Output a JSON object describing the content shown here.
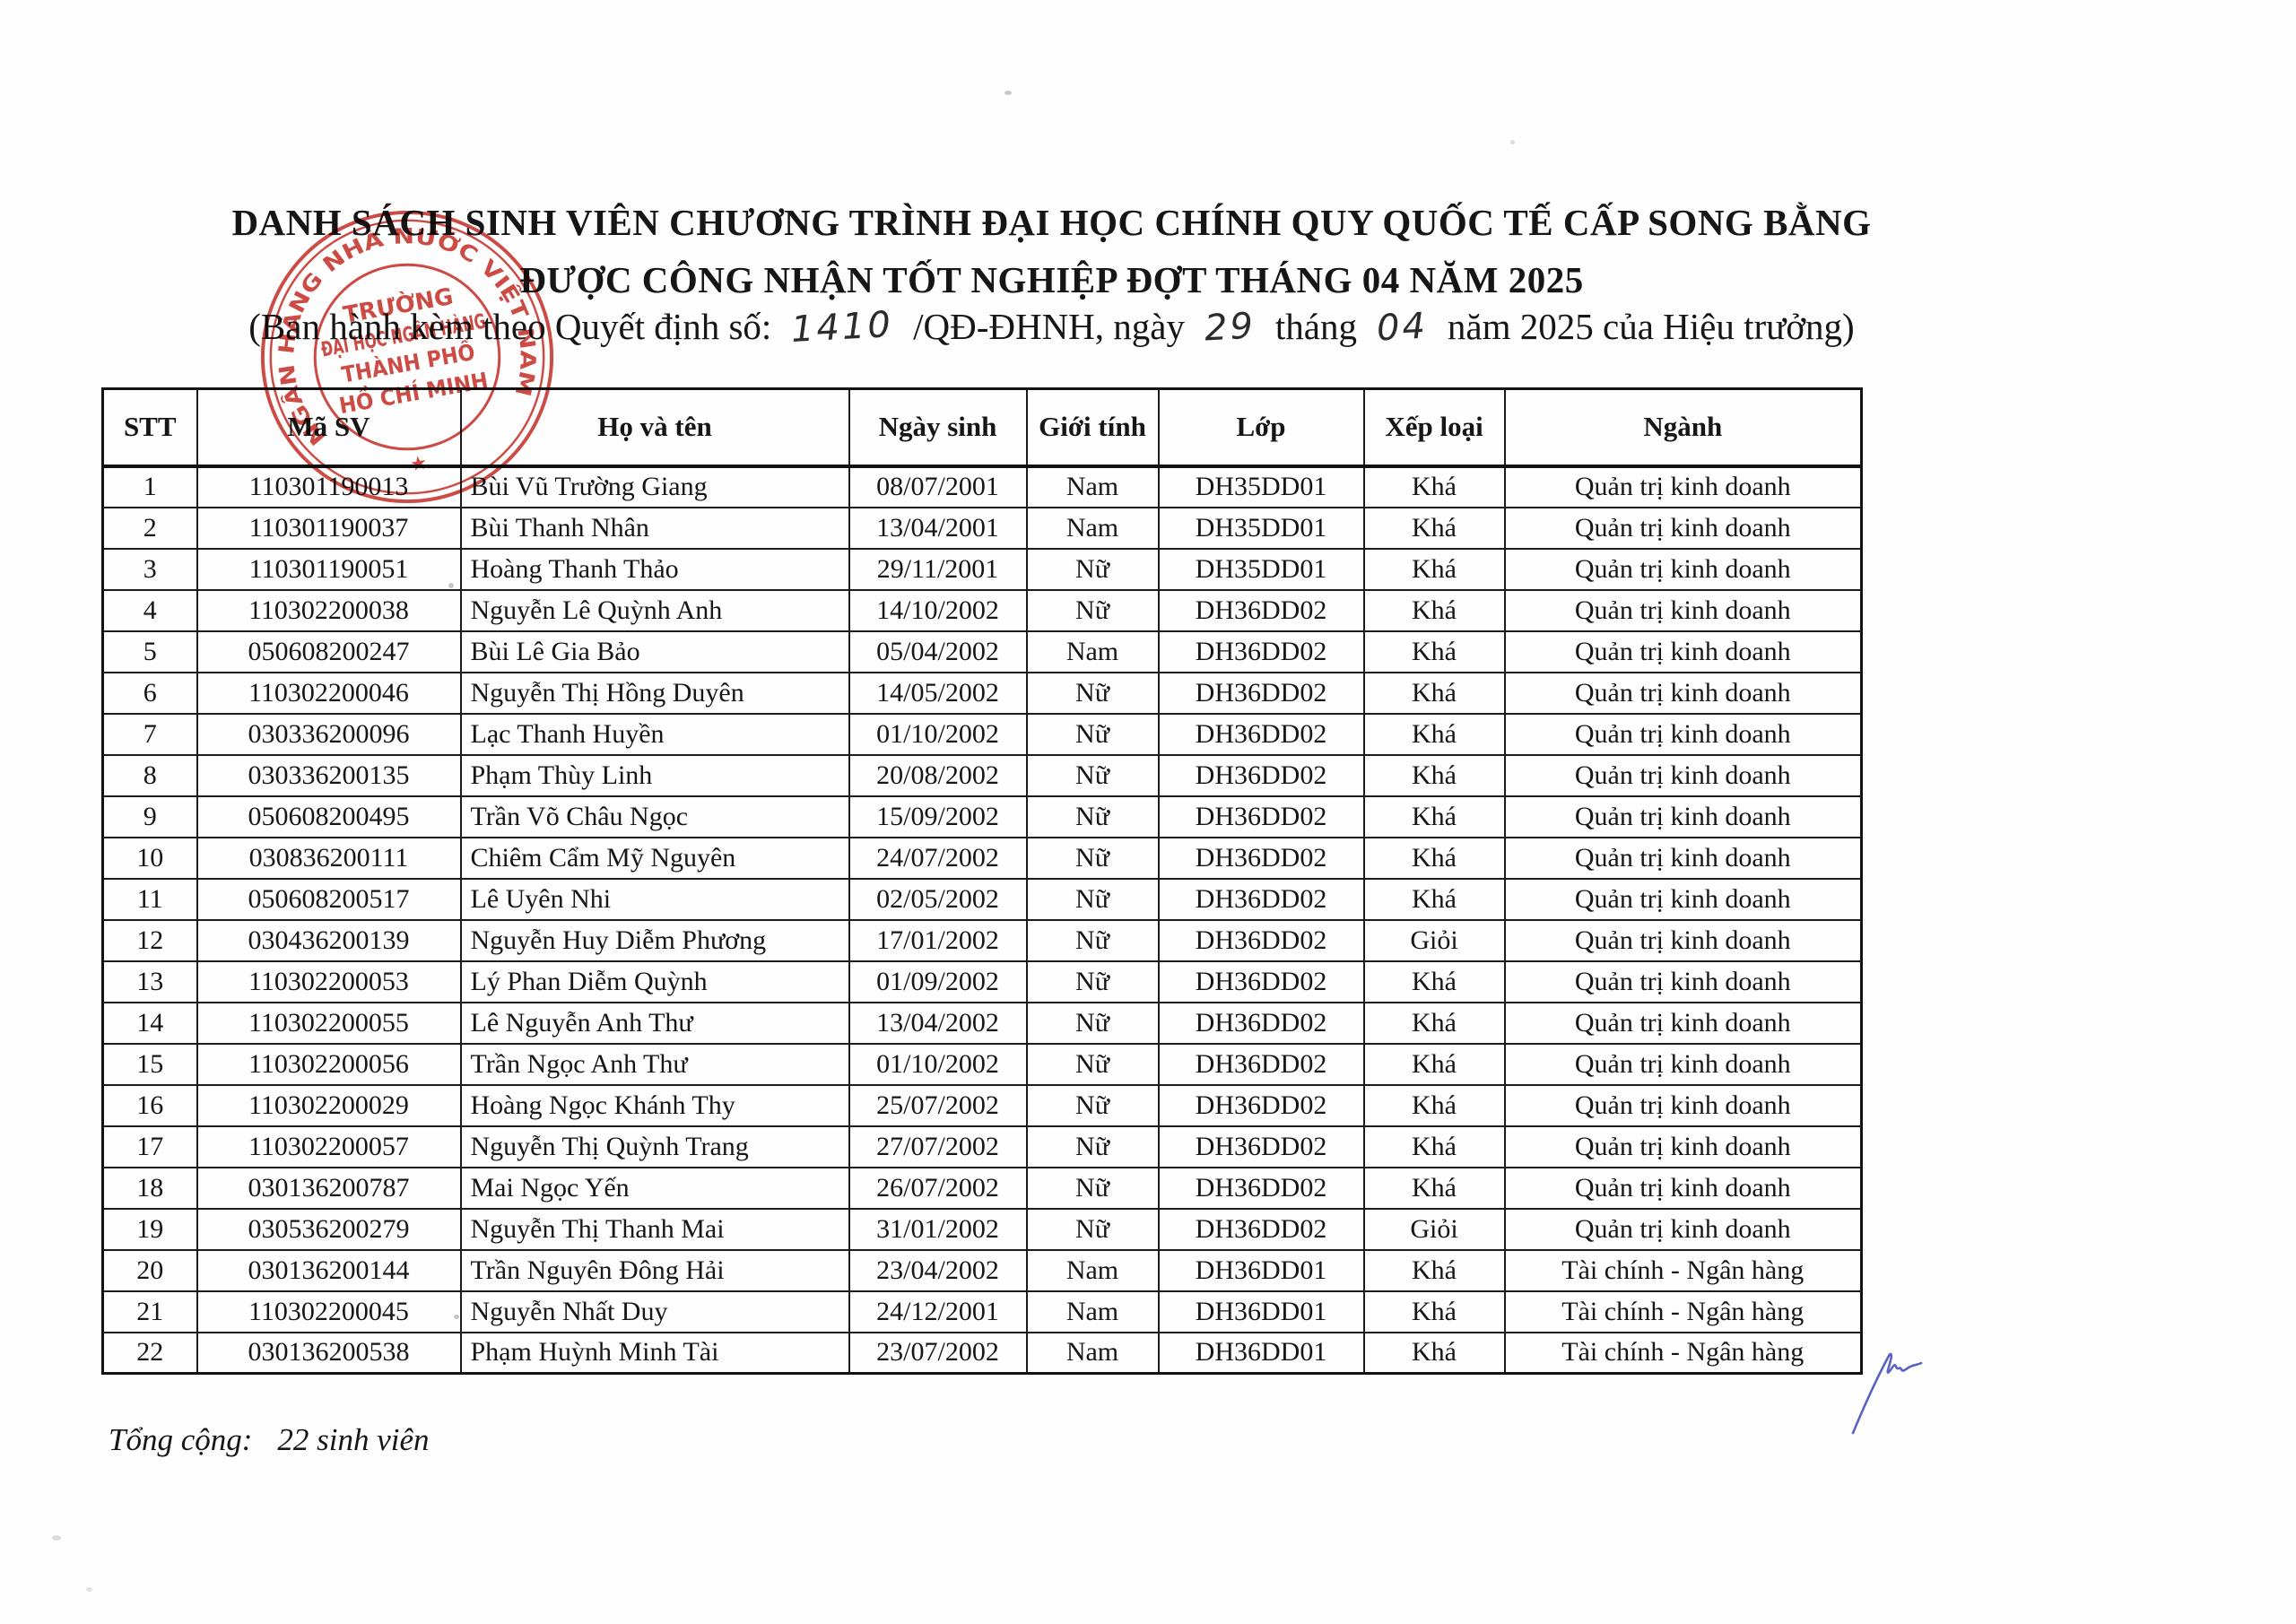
{
  "document": {
    "title_line1": "DANH SÁCH SINH VIÊN CHƯƠNG TRÌNH ĐẠI HỌC CHÍNH QUY QUỐC TẾ CẤP SONG BẰNG",
    "title_line2": "ĐƯỢC CÔNG NHẬN TỐT NGHIỆP ĐỢT THÁNG 04 NĂM 2025",
    "issuance": {
      "prefix": "(Ban hành kèm theo Quyết định số:",
      "decision_number": "1410",
      "segment_qd": "/QĐ-ĐHNH, ngày",
      "day": "29",
      "segment_thang": "tháng",
      "month": "04",
      "suffix": "năm 2025 của Hiệu trưởng)"
    }
  },
  "stamp": {
    "ring_text": "NGÂN HÀNG NHÀ NƯỚC VIỆT NAM",
    "line1": "TRƯỜNG",
    "line2": "ĐẠI HỌC NGÂN HÀNG",
    "line3": "THÀNH PHỐ",
    "line4": "HỒ CHÍ MINH",
    "star": "★",
    "color": "#c93b35"
  },
  "table": {
    "headers": [
      "STT",
      "Mã SV",
      "Họ và tên",
      "Ngày sinh",
      "Giới tính",
      "Lớp",
      "Xếp loại",
      "Ngành"
    ],
    "rows": [
      [
        "1",
        "110301190013",
        "Bùi Vũ Trường Giang",
        "08/07/2001",
        "Nam",
        "DH35DD01",
        "Khá",
        "Quản trị kinh doanh"
      ],
      [
        "2",
        "110301190037",
        "Bùi Thanh Nhân",
        "13/04/2001",
        "Nam",
        "DH35DD01",
        "Khá",
        "Quản trị kinh doanh"
      ],
      [
        "3",
        "110301190051",
        "Hoàng Thanh Thảo",
        "29/11/2001",
        "Nữ",
        "DH35DD01",
        "Khá",
        "Quản trị kinh doanh"
      ],
      [
        "4",
        "110302200038",
        "Nguyễn Lê Quỳnh Anh",
        "14/10/2002",
        "Nữ",
        "DH36DD02",
        "Khá",
        "Quản trị kinh doanh"
      ],
      [
        "5",
        "050608200247",
        "Bùi Lê Gia Bảo",
        "05/04/2002",
        "Nam",
        "DH36DD02",
        "Khá",
        "Quản trị kinh doanh"
      ],
      [
        "6",
        "110302200046",
        "Nguyễn Thị Hồng Duyên",
        "14/05/2002",
        "Nữ",
        "DH36DD02",
        "Khá",
        "Quản trị kinh doanh"
      ],
      [
        "7",
        "030336200096",
        "Lạc Thanh Huyền",
        "01/10/2002",
        "Nữ",
        "DH36DD02",
        "Khá",
        "Quản trị kinh doanh"
      ],
      [
        "8",
        "030336200135",
        "Phạm Thùy Linh",
        "20/08/2002",
        "Nữ",
        "DH36DD02",
        "Khá",
        "Quản trị kinh doanh"
      ],
      [
        "9",
        "050608200495",
        "Trần Võ Châu Ngọc",
        "15/09/2002",
        "Nữ",
        "DH36DD02",
        "Khá",
        "Quản trị kinh doanh"
      ],
      [
        "10",
        "030836200111",
        "Chiêm Cẩm Mỹ Nguyên",
        "24/07/2002",
        "Nữ",
        "DH36DD02",
        "Khá",
        "Quản trị kinh doanh"
      ],
      [
        "11",
        "050608200517",
        "Lê Uyên Nhi",
        "02/05/2002",
        "Nữ",
        "DH36DD02",
        "Khá",
        "Quản trị kinh doanh"
      ],
      [
        "12",
        "030436200139",
        "Nguyễn Huy Diễm Phương",
        "17/01/2002",
        "Nữ",
        "DH36DD02",
        "Giỏi",
        "Quản trị kinh doanh"
      ],
      [
        "13",
        "110302200053",
        "Lý Phan Diễm Quỳnh",
        "01/09/2002",
        "Nữ",
        "DH36DD02",
        "Khá",
        "Quản trị kinh doanh"
      ],
      [
        "14",
        "110302200055",
        "Lê Nguyễn Anh Thư",
        "13/04/2002",
        "Nữ",
        "DH36DD02",
        "Khá",
        "Quản trị kinh doanh"
      ],
      [
        "15",
        "110302200056",
        "Trần Ngọc Anh Thư",
        "01/10/2002",
        "Nữ",
        "DH36DD02",
        "Khá",
        "Quản trị kinh doanh"
      ],
      [
        "16",
        "110302200029",
        "Hoàng Ngọc Khánh Thy",
        "25/07/2002",
        "Nữ",
        "DH36DD02",
        "Khá",
        "Quản trị kinh doanh"
      ],
      [
        "17",
        "110302200057",
        "Nguyễn Thị Quỳnh Trang",
        "27/07/2002",
        "Nữ",
        "DH36DD02",
        "Khá",
        "Quản trị kinh doanh"
      ],
      [
        "18",
        "030136200787",
        "Mai Ngọc Yến",
        "26/07/2002",
        "Nữ",
        "DH36DD02",
        "Khá",
        "Quản trị kinh doanh"
      ],
      [
        "19",
        "030536200279",
        "Nguyễn Thị Thanh Mai",
        "31/01/2002",
        "Nữ",
        "DH36DD02",
        "Giỏi",
        "Quản trị kinh doanh"
      ],
      [
        "20",
        "030136200144",
        "Trần Nguyên Đông Hải",
        "23/04/2002",
        "Nam",
        "DH36DD01",
        "Khá",
        "Tài chính - Ngân hàng"
      ],
      [
        "21",
        "110302200045",
        "Nguyễn Nhất Duy",
        "24/12/2001",
        "Nam",
        "DH36DD01",
        "Khá",
        "Tài chính - Ngân hàng"
      ],
      [
        "22",
        "030136200538",
        "Phạm Huỳnh Minh Tài",
        "23/07/2002",
        "Nam",
        "DH36DD01",
        "Khá",
        "Tài chính - Ngân hàng"
      ]
    ]
  },
  "footer": {
    "total_label": "Tổng cộng:",
    "total_value": "22 sinh viên"
  },
  "annotations": {
    "ink_color": "#5a62c2"
  }
}
